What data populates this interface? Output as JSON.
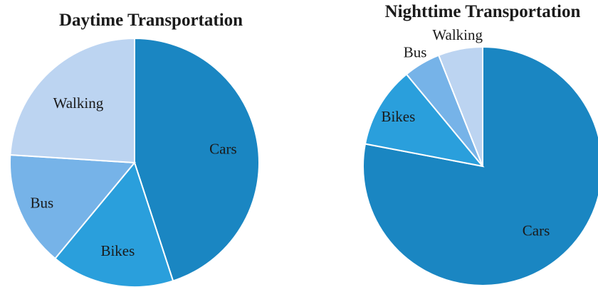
{
  "chart_data": [
    {
      "type": "pie",
      "title": "Daytime Transportation",
      "slices": [
        {
          "label": "Cars",
          "value": 45,
          "color": "#1a86c2"
        },
        {
          "label": "Bikes",
          "value": 16,
          "color": "#2a9fdc"
        },
        {
          "label": "Bus",
          "value": 15,
          "color": "#76b3e8"
        },
        {
          "label": "Walking",
          "value": 24,
          "color": "#bcd4f1"
        }
      ]
    },
    {
      "type": "pie",
      "title": "Nighttime Transportation",
      "slices": [
        {
          "label": "Cars",
          "value": 78,
          "color": "#1a86c2"
        },
        {
          "label": "Bikes",
          "value": 11,
          "color": "#2a9fdc"
        },
        {
          "label": "Bus",
          "value": 5,
          "color": "#76b3e8"
        },
        {
          "label": "Walking",
          "value": 6,
          "color": "#bcd4f1"
        }
      ]
    }
  ]
}
